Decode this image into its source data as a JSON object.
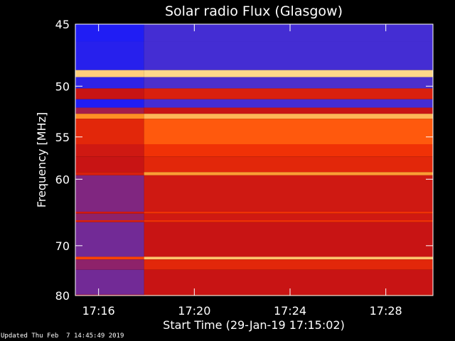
{
  "chart_data": {
    "type": "heatmap",
    "title": "Solar radio Flux (Glasgow)",
    "xlabel_prefix": "Start Time",
    "start_time": "(29-Jan-19 17:15:02)",
    "ylabel": "Frequency [MHz]",
    "x_ticks": [
      "17:16",
      "17:20",
      "17:24",
      "17:28"
    ],
    "x_tick_minutes": [
      16,
      20,
      24,
      28
    ],
    "x_range_minutes": [
      15.03,
      29.97
    ],
    "y_ticks": [
      45,
      50,
      55,
      60,
      70,
      80
    ],
    "y_range_mhz": [
      45,
      80
    ],
    "y_scale": "reciprocal",
    "colormap": [
      "#000000",
      "#1418ff",
      "#5032c8",
      "#c81414",
      "#ff3c00",
      "#ff9628",
      "#ffe6a0"
    ],
    "data_start_minutes": 17.9,
    "bands": [
      {
        "f0": 45.0,
        "f1": 46.3,
        "pre": 0.2,
        "post": 0.3
      },
      {
        "f0": 46.3,
        "f1": 48.6,
        "pre": 0.22,
        "post": 0.3
      },
      {
        "f0": 48.6,
        "f1": 49.2,
        "pre": 0.95,
        "post": 0.97
      },
      {
        "f0": 49.2,
        "f1": 50.2,
        "pre": 0.24,
        "post": 0.32
      },
      {
        "f0": 50.2,
        "f1": 51.2,
        "pre": 0.5,
        "post": 0.55
      },
      {
        "f0": 51.2,
        "f1": 52.0,
        "pre": 0.2,
        "post": 0.3
      },
      {
        "f0": 52.0,
        "f1": 52.6,
        "pre": 0.45,
        "post": 0.5
      },
      {
        "f0": 52.6,
        "f1": 53.1,
        "pre": 0.82,
        "post": 0.9
      },
      {
        "f0": 53.1,
        "f1": 55.8,
        "pre": 0.58,
        "post": 0.72
      },
      {
        "f0": 55.8,
        "f1": 57.2,
        "pre": 0.52,
        "post": 0.62
      },
      {
        "f0": 57.2,
        "f1": 59.1,
        "pre": 0.5,
        "post": 0.58
      },
      {
        "f0": 59.1,
        "f1": 59.5,
        "pre": 0.55,
        "post": 0.85
      },
      {
        "f0": 59.5,
        "f1": 64.5,
        "pre": 0.4,
        "post": 0.52
      },
      {
        "f0": 64.5,
        "f1": 64.8,
        "pre": 0.52,
        "post": 0.62
      },
      {
        "f0": 64.8,
        "f1": 65.8,
        "pre": 0.42,
        "post": 0.52
      },
      {
        "f0": 65.8,
        "f1": 66.1,
        "pre": 0.55,
        "post": 0.62
      },
      {
        "f0": 66.1,
        "f1": 72.0,
        "pre": 0.38,
        "post": 0.5
      },
      {
        "f0": 72.0,
        "f1": 72.5,
        "pre": 0.68,
        "post": 0.93
      },
      {
        "f0": 72.5,
        "f1": 74.5,
        "pre": 0.42,
        "post": 0.58
      },
      {
        "f0": 74.5,
        "f1": 79.8,
        "pre": 0.38,
        "post": 0.5
      },
      {
        "f0": 79.8,
        "f1": 80.0,
        "pre": 0.5,
        "post": 0.6
      }
    ],
    "grid": false
  },
  "footer": "Updated Thu Feb  7 14:45:49 2019"
}
